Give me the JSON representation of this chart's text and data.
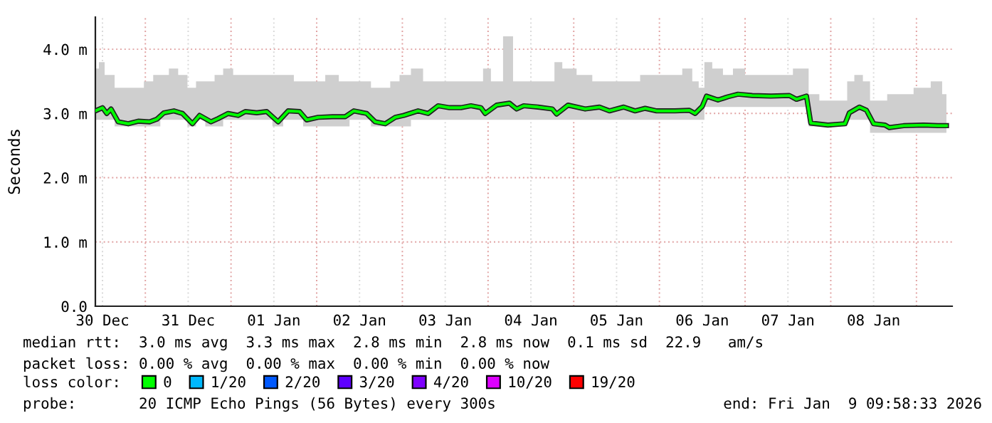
{
  "chart_data": {
    "type": "line",
    "ylabel": "Seconds",
    "x": [
      "2025-12-30T10:00",
      "2025-12-30T12:00",
      "2025-12-30T13:12",
      "2025-12-30T14:24",
      "2025-12-30T16:24",
      "2025-12-30T19:12",
      "2025-12-30T22:00",
      "2025-12-31T01:12",
      "2025-12-31T03:12",
      "2025-12-31T05:12",
      "2025-12-31T08:00",
      "2025-12-31T10:24",
      "2025-12-31T13:12",
      "2025-12-31T15:12",
      "2025-12-31T18:24",
      "2025-12-31T20:24",
      "2025-12-31T23:12",
      "2026-01-01T02:00",
      "2026-01-01T04:00",
      "2026-01-01T07:12",
      "2026-01-01T10:00",
      "2026-01-01T13:12",
      "2026-01-01T16:00",
      "2026-01-01T19:12",
      "2026-01-01T21:12",
      "2026-01-02T00:24",
      "2026-01-02T04:24",
      "2026-01-02T08:00",
      "2026-01-02T10:24",
      "2026-01-02T14:00",
      "2026-01-02T16:24",
      "2026-01-02T19:12",
      "2026-01-02T22:00",
      "2026-01-03T00:24",
      "2026-01-03T04:24",
      "2026-01-03T07:12",
      "2026-01-03T10:00",
      "2026-01-03T13:12",
      "2026-01-03T16:24",
      "2026-01-03T19:12",
      "2026-01-03T22:00",
      "2026-01-03T23:12",
      "2026-01-04T02:24",
      "2026-01-04T06:00",
      "2026-01-04T08:00",
      "2026-01-04T10:00",
      "2026-01-04T14:00",
      "2026-01-04T18:00",
      "2026-01-04T19:12",
      "2026-01-04T22:24",
      "2026-01-05T03:12",
      "2026-01-05T07:12",
      "2026-01-05T10:00",
      "2026-01-05T14:00",
      "2026-01-05T17:12",
      "2026-01-05T20:00",
      "2026-01-05T23:12",
      "2026-01-06T04:24",
      "2026-01-06T08:24",
      "2026-01-06T10:00",
      "2026-01-06T12:00",
      "2026-01-06T13:12",
      "2026-01-06T16:24",
      "2026-01-06T19:12",
      "2026-01-06T22:00",
      "2026-01-07T02:00",
      "2026-01-07T07:12",
      "2026-01-07T12:24",
      "2026-01-07T14:24",
      "2026-01-07T17:12",
      "2026-01-07T18:24",
      "2026-01-07T23:12",
      "2026-01-08T04:00",
      "2026-01-08T05:12",
      "2026-01-08T08:00",
      "2026-01-08T10:00",
      "2026-01-08T12:00",
      "2026-01-08T15:12",
      "2026-01-08T16:24",
      "2026-01-08T20:24",
      "2026-01-09T02:00",
      "2026-01-09T06:00",
      "2026-01-09T08:24"
    ],
    "series": [
      {
        "name": "0",
        "color": "#00ff00",
        "values": [
          3.04,
          3.09,
          3.0,
          3.07,
          2.87,
          2.84,
          2.88,
          2.87,
          2.91,
          3.01,
          3.04,
          3.0,
          2.84,
          2.97,
          2.87,
          2.92,
          3.0,
          2.97,
          3.03,
          3.01,
          3.03,
          2.87,
          3.04,
          3.03,
          2.9,
          2.94,
          2.95,
          2.95,
          3.04,
          3.0,
          2.87,
          2.84,
          2.94,
          2.97,
          3.04,
          3.0,
          3.12,
          3.09,
          3.09,
          3.12,
          3.09,
          3.0,
          3.13,
          3.16,
          3.07,
          3.12,
          3.1,
          3.07,
          2.99,
          3.13,
          3.07,
          3.1,
          3.04,
          3.1,
          3.04,
          3.08,
          3.04,
          3.04,
          3.05,
          3.0,
          3.11,
          3.27,
          3.21,
          3.26,
          3.3,
          3.28,
          3.27,
          3.28,
          3.22,
          3.27,
          2.85,
          2.82,
          2.84,
          3.01,
          3.1,
          3.05,
          2.84,
          2.82,
          2.78,
          2.81,
          2.82,
          2.81,
          2.81
        ],
        "upper": [
          3.7,
          3.8,
          3.6,
          3.6,
          3.4,
          3.4,
          3.4,
          3.5,
          3.6,
          3.6,
          3.7,
          3.6,
          3.4,
          3.5,
          3.5,
          3.6,
          3.7,
          3.6,
          3.6,
          3.6,
          3.6,
          3.6,
          3.6,
          3.5,
          3.5,
          3.5,
          3.6,
          3.5,
          3.5,
          3.5,
          3.4,
          3.4,
          3.5,
          3.6,
          3.7,
          3.5,
          3.5,
          3.5,
          3.5,
          3.5,
          3.5,
          3.7,
          3.5,
          4.2,
          3.5,
          3.5,
          3.5,
          3.5,
          3.8,
          3.7,
          3.6,
          3.5,
          3.5,
          3.5,
          3.5,
          3.6,
          3.6,
          3.6,
          3.7,
          3.5,
          3.4,
          3.8,
          3.7,
          3.6,
          3.7,
          3.6,
          3.6,
          3.6,
          3.7,
          3.7,
          3.3,
          3.2,
          3.2,
          3.5,
          3.6,
          3.5,
          3.2,
          3.2,
          3.3,
          3.3,
          3.4,
          3.5,
          3.3
        ],
        "lower": [
          2.9,
          2.9,
          2.9,
          2.9,
          2.8,
          2.8,
          2.8,
          2.8,
          2.8,
          2.9,
          2.9,
          2.9,
          2.8,
          2.9,
          2.8,
          2.8,
          2.9,
          2.9,
          2.9,
          2.9,
          2.9,
          2.8,
          2.9,
          2.9,
          2.8,
          2.8,
          2.8,
          2.8,
          2.9,
          2.9,
          2.8,
          2.8,
          2.8,
          2.8,
          2.9,
          2.9,
          2.9,
          2.9,
          2.9,
          2.9,
          2.9,
          2.9,
          2.9,
          2.9,
          2.9,
          2.9,
          2.9,
          2.9,
          2.9,
          2.9,
          2.9,
          2.9,
          2.9,
          2.9,
          2.9,
          2.9,
          2.9,
          2.9,
          2.9,
          2.9,
          2.9,
          3.1,
          3.1,
          3.1,
          3.1,
          3.1,
          3.1,
          3.1,
          3.1,
          3.1,
          2.8,
          2.8,
          2.8,
          2.9,
          2.9,
          2.9,
          2.7,
          2.7,
          2.7,
          2.7,
          2.7,
          2.7,
          2.7
        ]
      },
      {
        "name": "1/20",
        "color": "#00b8ff",
        "values": [
          null,
          null,
          null,
          null,
          null,
          null,
          null,
          null,
          null,
          null,
          null,
          null,
          null,
          null,
          null,
          null,
          null,
          null,
          null,
          null,
          null,
          null,
          null,
          null,
          null,
          null,
          null,
          null,
          null,
          null,
          null,
          null,
          null,
          null,
          null,
          null,
          null,
          null,
          null,
          null,
          null,
          null,
          null,
          null,
          null,
          null,
          null,
          null,
          null,
          null,
          null,
          null,
          null,
          null,
          null,
          null,
          null,
          null,
          null,
          null,
          null,
          null,
          null,
          null,
          null,
          null,
          null,
          null,
          null,
          null,
          null,
          null,
          null,
          null,
          null,
          null,
          null,
          null,
          null,
          null,
          null,
          null,
          null
        ]
      },
      {
        "name": "2/20",
        "color": "#0059ff",
        "values": [
          null,
          null,
          null,
          null,
          null,
          null,
          null,
          null,
          null,
          null,
          null,
          null,
          null,
          null,
          null,
          null,
          null,
          null,
          null,
          null,
          null,
          null,
          null,
          null,
          null,
          null,
          null,
          null,
          null,
          null,
          null,
          null,
          null,
          null,
          null,
          null,
          null,
          null,
          null,
          null,
          null,
          null,
          null,
          null,
          null,
          null,
          null,
          null,
          null,
          null,
          null,
          null,
          null,
          null,
          null,
          null,
          null,
          null,
          null,
          null,
          null,
          null,
          null,
          null,
          null,
          null,
          null,
          null,
          null,
          null,
          null,
          null,
          null,
          null,
          null,
          null,
          null,
          null,
          null,
          null,
          null,
          null,
          null
        ]
      },
      {
        "name": "3/20",
        "color": "#5e00ff",
        "values": [
          null,
          null,
          null,
          null,
          null,
          null,
          null,
          null,
          null,
          null,
          null,
          null,
          null,
          null,
          null,
          null,
          null,
          null,
          null,
          null,
          null,
          null,
          null,
          null,
          null,
          null,
          null,
          null,
          null,
          null,
          null,
          null,
          null,
          null,
          null,
          null,
          null,
          null,
          null,
          null,
          null,
          null,
          null,
          null,
          null,
          null,
          null,
          null,
          null,
          null,
          null,
          null,
          null,
          null,
          null,
          null,
          null,
          null,
          null,
          null,
          null,
          null,
          null,
          null,
          null,
          null,
          null,
          null,
          null,
          null,
          null,
          null,
          null,
          null,
          null,
          null,
          null,
          null,
          null,
          null,
          null,
          null,
          null
        ]
      },
      {
        "name": "4/20",
        "color": "#7e00ff",
        "values": [
          null,
          null,
          null,
          null,
          null,
          null,
          null,
          null,
          null,
          null,
          null,
          null,
          null,
          null,
          null,
          null,
          null,
          null,
          null,
          null,
          null,
          null,
          null,
          null,
          null,
          null,
          null,
          null,
          null,
          null,
          null,
          null,
          null,
          null,
          null,
          null,
          null,
          null,
          null,
          null,
          null,
          null,
          null,
          null,
          null,
          null,
          null,
          null,
          null,
          null,
          null,
          null,
          null,
          null,
          null,
          null,
          null,
          null,
          null,
          null,
          null,
          null,
          null,
          null,
          null,
          null,
          null,
          null,
          null,
          null,
          null,
          null,
          null,
          null,
          null,
          null,
          null,
          null,
          null,
          null,
          null,
          null,
          null
        ]
      },
      {
        "name": "10/20",
        "color": "#dd00ff",
        "values": [
          null,
          null,
          null,
          null,
          null,
          null,
          null,
          null,
          null,
          null,
          null,
          null,
          null,
          null,
          null,
          null,
          null,
          null,
          null,
          null,
          null,
          null,
          null,
          null,
          null,
          null,
          null,
          null,
          null,
          null,
          null,
          null,
          null,
          null,
          null,
          null,
          null,
          null,
          null,
          null,
          null,
          null,
          null,
          null,
          null,
          null,
          null,
          null,
          null,
          null,
          null,
          null,
          null,
          null,
          null,
          null,
          null,
          null,
          null,
          null,
          null,
          null,
          null,
          null,
          null,
          null,
          null,
          null,
          null,
          null,
          null,
          null,
          null,
          null,
          null,
          null,
          null,
          null,
          null,
          null,
          null,
          null,
          null
        ]
      },
      {
        "name": "19/20",
        "color": "#ff0000",
        "values": [
          null,
          null,
          null,
          null,
          null,
          null,
          null,
          null,
          null,
          null,
          null,
          null,
          null,
          null,
          null,
          null,
          null,
          null,
          null,
          null,
          null,
          null,
          null,
          null,
          null,
          null,
          null,
          null,
          null,
          null,
          null,
          null,
          null,
          null,
          null,
          null,
          null,
          null,
          null,
          null,
          null,
          null,
          null,
          null,
          null,
          null,
          null,
          null,
          null,
          null,
          null,
          null,
          null,
          null,
          null,
          null,
          null,
          null,
          null,
          null,
          null,
          null,
          null,
          null,
          null,
          null,
          null,
          null,
          null,
          null,
          null,
          null,
          null,
          null,
          null,
          null,
          null,
          null,
          null,
          null,
          null,
          null,
          null
        ]
      }
    ],
    "xlim": [
      "2025-12-30T10:00",
      "2026-01-09T10:00"
    ],
    "xticks": [
      {
        "value": "2025-12-30T12:00",
        "label": "30 Dec"
      },
      {
        "value": "2025-12-31T00:00",
        "label": null
      },
      {
        "value": "2025-12-31T12:00",
        "label": "31 Dec"
      },
      {
        "value": "2026-01-01T00:00",
        "label": null
      },
      {
        "value": "2026-01-01T12:00",
        "label": "01 Jan"
      },
      {
        "value": "2026-01-02T00:00",
        "label": null
      },
      {
        "value": "2026-01-02T12:00",
        "label": "02 Jan"
      },
      {
        "value": "2026-01-03T00:00",
        "label": null
      },
      {
        "value": "2026-01-03T12:00",
        "label": "03 Jan"
      },
      {
        "value": "2026-01-04T00:00",
        "label": null
      },
      {
        "value": "2026-01-04T12:00",
        "label": "04 Jan"
      },
      {
        "value": "2026-01-05T00:00",
        "label": null
      },
      {
        "value": "2026-01-05T12:00",
        "label": "05 Jan"
      },
      {
        "value": "2026-01-06T00:00",
        "label": null
      },
      {
        "value": "2026-01-06T12:00",
        "label": "06 Jan"
      },
      {
        "value": "2026-01-07T00:00",
        "label": null
      },
      {
        "value": "2026-01-07T12:00",
        "label": "07 Jan"
      },
      {
        "value": "2026-01-08T00:00",
        "label": null
      },
      {
        "value": "2026-01-08T12:00",
        "label": "08 Jan"
      },
      {
        "value": "2026-01-09T00:00",
        "label": null
      }
    ],
    "ylim": [
      0,
      4.5
    ],
    "yticks": [
      {
        "value": 0,
        "label": "0.0"
      },
      {
        "value": 1,
        "label": "1.0 m"
      },
      {
        "value": 2,
        "label": "2.0 m"
      },
      {
        "value": 3,
        "label": "3.0 m"
      },
      {
        "value": 4,
        "label": "4.0 m"
      }
    ],
    "grid": true,
    "legend": "bottom",
    "legend_title": "loss color:",
    "line_style": "solid",
    "marker": "none",
    "annotations": [
      "median rtt:  3.0 ms avg  3.3 ms max  2.8 ms min  2.8 ms now  0.1 ms sd  22.9   am/s",
      "packet loss: 0.00 % avg  0.00 % max  0.00 % min  0.00 % now",
      "probe:       20 ICMP Echo Pings (56 Bytes) every 300s",
      "end: Fri Jan  9 09:58:33 2026"
    ]
  }
}
